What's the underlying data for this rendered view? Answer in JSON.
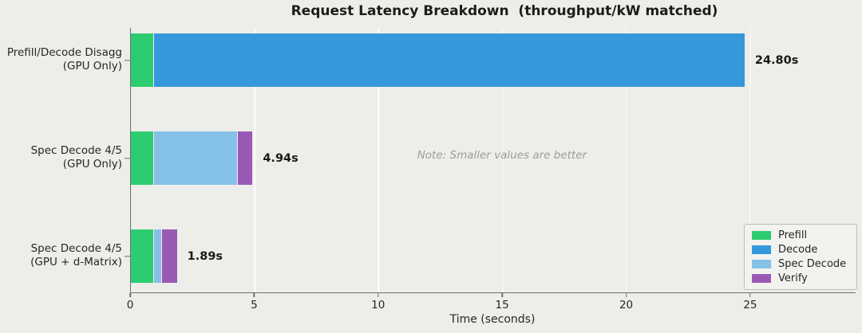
{
  "chart_data": {
    "type": "bar",
    "orientation": "horizontal",
    "stacked": true,
    "title": "Request Latency Breakdown  (throughput/kW matched)",
    "xlabel": "Time (seconds)",
    "xlim": [
      0,
      29.25
    ],
    "xticks": [
      0,
      5,
      10,
      15,
      20,
      25
    ],
    "grid": "vertical",
    "annotation": "Note: Smaller values are better",
    "categories": [
      {
        "lines": [
          "Prefill/Decode Disagg",
          "(GPU Only)"
        ],
        "total": 24.8,
        "total_label": "24.80s"
      },
      {
        "lines": [
          "Spec Decode 4/5",
          "(GPU Only)"
        ],
        "total": 4.94,
        "total_label": "4.94s"
      },
      {
        "lines": [
          "Spec Decode 4/5",
          "(GPU + d-Matrix)"
        ],
        "total": 1.89,
        "total_label": "1.89s"
      }
    ],
    "series": [
      {
        "name": "Prefill",
        "color": "#2ecc71",
        "values": [
          0.93,
          0.93,
          0.93
        ]
      },
      {
        "name": "Decode",
        "color": "#3498db",
        "values": [
          23.87,
          0,
          0
        ]
      },
      {
        "name": "Spec Decode",
        "color": "#85c1e9",
        "values": [
          0,
          3.4,
          0.32
        ]
      },
      {
        "name": "Verify",
        "color": "#9b59b6",
        "values": [
          0,
          0.61,
          0.64
        ]
      }
    ],
    "legend": {
      "position": "lower right",
      "items": [
        "Prefill",
        "Decode",
        "Spec Decode",
        "Verify"
      ]
    }
  },
  "style": {
    "background": "#EDEDE9",
    "gridline_color": "#FFFFFF",
    "spine_color": "#6E6E6E",
    "text_color": "#262626",
    "note_color": "#9C9C9C",
    "legend_background": "#F2F2EE",
    "legend_border": "#BDBDBD"
  }
}
